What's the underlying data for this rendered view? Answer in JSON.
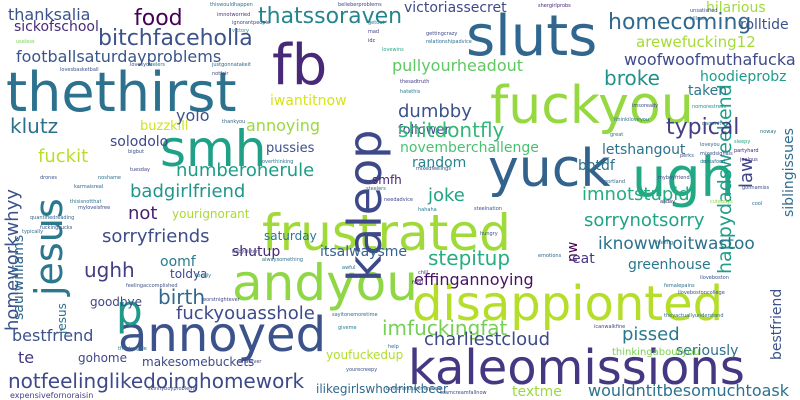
{
  "words": [
    {
      "text": "thethirst",
      "color": "#2c728e"
    },
    {
      "text": "annoyed",
      "color": "#3b528b"
    },
    {
      "text": "kaleomissions",
      "color": "#453781"
    },
    {
      "text": "frustrated",
      "color": "#a0da39"
    },
    {
      "text": "disappionted",
      "color": "#b5de2b"
    },
    {
      "text": "andyou",
      "color": "#8fd744"
    },
    {
      "text": "fuckyou",
      "color": "#95d840"
    },
    {
      "text": "sluts",
      "color": "#31668e"
    },
    {
      "text": "ugh",
      "color": "#22a884"
    },
    {
      "text": "smh",
      "color": "#1fa187"
    },
    {
      "text": "yuck",
      "color": "#33638d"
    },
    {
      "text": "fb",
      "color": "#482878"
    },
    {
      "text": "kaleop",
      "color": "#3e4989"
    },
    {
      "text": "jesus",
      "color": "#2a788e"
    },
    {
      "text": "bitchfaceholla",
      "color": "#3b528b"
    },
    {
      "text": "thatssoraven",
      "color": "#25858e"
    },
    {
      "text": "food",
      "color": "#440154"
    },
    {
      "text": "homecoming",
      "color": "#31688e"
    },
    {
      "text": "footballsaturdayproblems",
      "color": "#39568c"
    },
    {
      "text": "pullyourheadout",
      "color": "#5ec962"
    },
    {
      "text": "woofwoofmuthafucka",
      "color": "#3e4a89"
    },
    {
      "text": "arewefucking12",
      "color": "#a5db36"
    },
    {
      "text": "broke",
      "color": "#21918c"
    },
    {
      "text": "happydadsweekend",
      "color": "#1f9e89"
    },
    {
      "text": "hoodieprobz",
      "color": "#1e9b8a"
    },
    {
      "text": "law",
      "color": "#404688"
    },
    {
      "text": "siblingissues",
      "color": "#2f6c8e"
    },
    {
      "text": "taken",
      "color": "#2a778e"
    },
    {
      "text": "typical",
      "color": "#433e85"
    },
    {
      "text": "klutz",
      "color": "#2d708e"
    },
    {
      "text": "buzzkill",
      "color": "#d2e21b"
    },
    {
      "text": "iwantitnow",
      "color": "#d8e219"
    },
    {
      "text": "dumbby",
      "color": "#3b528b"
    },
    {
      "text": "follower",
      "color": "#3f4788"
    },
    {
      "text": "shitdontfly",
      "color": "#35b779"
    },
    {
      "text": "fuckit",
      "color": "#b8de29"
    },
    {
      "text": "yolo",
      "color": "#3a548c"
    },
    {
      "text": "annoying",
      "color": "#9bd93c"
    },
    {
      "text": "solodolo",
      "color": "#3e4989"
    },
    {
      "text": "numberonerule",
      "color": "#1e9c89"
    },
    {
      "text": "novemberchallenge",
      "color": "#48c16e"
    },
    {
      "text": "letshangout",
      "color": "#2c718e"
    },
    {
      "text": "random",
      "color": "#25848e"
    },
    {
      "text": "badgirlfriend",
      "color": "#1f968b"
    },
    {
      "text": "pussies",
      "color": "#3d4e8a"
    },
    {
      "text": "smfh",
      "color": "#482374"
    },
    {
      "text": "botdf",
      "color": "#2c718e"
    },
    {
      "text": "imnotstupid",
      "color": "#25ac82"
    },
    {
      "text": "not",
      "color": "#481f70"
    },
    {
      "text": "joke",
      "color": "#20a386"
    },
    {
      "text": "yourignorant",
      "color": "#a8db34"
    },
    {
      "text": "sorryfriends",
      "color": "#3d4d8a"
    },
    {
      "text": "saturday",
      "color": "#2a788e"
    },
    {
      "text": "iknowwhoitwastoo",
      "color": "#2d718e"
    },
    {
      "text": "sorrynotsorry",
      "color": "#20a386"
    },
    {
      "text": "homeworkwhyy",
      "color": "#3b528b"
    },
    {
      "text": "ughh",
      "color": "#433d84"
    },
    {
      "text": "shutup",
      "color": "#482677"
    },
    {
      "text": "stepitup",
      "color": "#26ad81"
    },
    {
      "text": "oomf",
      "color": "#29798e"
    },
    {
      "text": "itsalwaysme",
      "color": "#34618d"
    },
    {
      "text": "eat",
      "color": "#453781"
    },
    {
      "text": "greenhouse",
      "color": "#29798e"
    },
    {
      "text": "thanksalia",
      "color": "#3b528b"
    },
    {
      "text": "saulwilliams",
      "color": "#31668e"
    },
    {
      "text": "birth",
      "color": "#31678e"
    },
    {
      "text": "toldya",
      "color": "#3e4989"
    },
    {
      "text": "effingannoying",
      "color": "#471164"
    },
    {
      "text": "jesus",
      "color": "#2c718e"
    },
    {
      "text": "p",
      "color": "#1f9a8a"
    },
    {
      "text": "goodbye",
      "color": "#404688"
    },
    {
      "text": "fuckyouasshole",
      "color": "#3e4a89"
    },
    {
      "text": "imfuckingfat",
      "color": "#75d054"
    },
    {
      "text": "smallgirlprobs",
      "color": "#56c667"
    },
    {
      "text": "bestfriend",
      "color": "#3b528b"
    },
    {
      "text": "gohome",
      "color": "#3f4788"
    },
    {
      "text": "charliestcloud",
      "color": "#3e4989"
    },
    {
      "text": "pissed",
      "color": "#2a788e"
    },
    {
      "text": "seriously",
      "color": "#2c718e"
    },
    {
      "text": "te",
      "color": "#453781"
    },
    {
      "text": "makesomebuckets",
      "color": "#3e4989"
    },
    {
      "text": "youfuckedup",
      "color": "#b2dd2d"
    },
    {
      "text": "notfeelinglikedoinghomework",
      "color": "#3e4989"
    },
    {
      "text": "ilikegirlswhodrinkbeer",
      "color": "#31688e"
    },
    {
      "text": "textme",
      "color": "#9bd93c"
    },
    {
      "text": "wouldit",
      "color": "#2c718e"
    },
    {
      "text": "wouldntitbesomuchtoask",
      "color": "#2c718e"
    },
    {
      "text": "expensivefornoraisin",
      "color": "#433e85"
    },
    {
      "text": "victoriassecret",
      "color": "#3e4989"
    },
    {
      "text": "hilarious",
      "color": "#9fda3a"
    },
    {
      "text": "rolltide",
      "color": "#3b528b"
    },
    {
      "text": "sickofschool",
      "color": "#472c7a"
    },
    {
      "text": "thinkingaboutyou",
      "color": "#7ad151"
    },
    {
      "text": "nw",
      "color": "#440154"
    }
  ],
  "tiny_words": [
    {
      "text": "thiswouldhappen",
      "color": "#2c728e"
    },
    {
      "text": "imnotworried",
      "color": "#46327e"
    },
    {
      "text": "ignorantpeople",
      "color": "#3e4989"
    },
    {
      "text": "victory",
      "color": "#1f9e89"
    },
    {
      "text": "belieberproblems",
      "color": "#404688"
    },
    {
      "text": "shergirlprobs",
      "color": "#482677"
    },
    {
      "text": "unsatisfied",
      "color": "#3b528b"
    },
    {
      "text": "killme",
      "color": "#31688e"
    },
    {
      "text": "getout",
      "color": "#2a788e"
    },
    {
      "text": "mad",
      "color": "#433e85"
    },
    {
      "text": "idc",
      "color": "#482374"
    },
    {
      "text": "gettingcrazy",
      "color": "#3e4989"
    },
    {
      "text": "relationshipadvice",
      "color": "#2d708e"
    },
    {
      "text": "lovewins",
      "color": "#22a884"
    },
    {
      "text": "useless",
      "color": "#7ad151"
    },
    {
      "text": "lovesbasketball",
      "color": "#3b528b"
    },
    {
      "text": "lovesyou",
      "color": "#3f4788"
    },
    {
      "text": "feelers",
      "color": "#2c718e"
    },
    {
      "text": "notfair",
      "color": "#3e4989"
    },
    {
      "text": "justgonnatakeit",
      "color": "#31688e"
    },
    {
      "text": "hatethis",
      "color": "#2a788e"
    },
    {
      "text": "thesadtruth",
      "color": "#433e85"
    },
    {
      "text": "imsoready",
      "color": "#3e4989"
    },
    {
      "text": "nomorestress",
      "color": "#21918c"
    },
    {
      "text": "ithinkiloveyou",
      "color": "#2c718e"
    },
    {
      "text": "loveyou",
      "color": "#31688e"
    },
    {
      "text": "mixedsignals",
      "color": "#3b528b"
    },
    {
      "text": "sleepy",
      "color": "#22a884"
    },
    {
      "text": "partyhard",
      "color": "#482374"
    },
    {
      "text": "myboyfriend",
      "color": "#3e4989"
    },
    {
      "text": "jealous",
      "color": "#46327e"
    },
    {
      "text": "instafood",
      "color": "#2c718e"
    },
    {
      "text": "noway",
      "color": "#2a788e"
    },
    {
      "text": "drones",
      "color": "#3b528b"
    },
    {
      "text": "karmaisreal",
      "color": "#31688e"
    },
    {
      "text": "noshame",
      "color": "#2c718e"
    },
    {
      "text": "mixedfeelings",
      "color": "#404688"
    },
    {
      "text": "steelers",
      "color": "#2d708e"
    },
    {
      "text": "needadvice",
      "color": "#3e4989"
    },
    {
      "text": "steelnation",
      "color": "#3b528b"
    },
    {
      "text": "portland",
      "color": "#31688e"
    },
    {
      "text": "cute",
      "color": "#21918c"
    },
    {
      "text": "cuteboys",
      "color": "#8fd744"
    },
    {
      "text": "allday",
      "color": "#482878"
    },
    {
      "text": "awful",
      "color": "#2c718e"
    },
    {
      "text": "chill",
      "color": "#3e4989"
    },
    {
      "text": "emotions",
      "color": "#31688e"
    },
    {
      "text": "feeling",
      "color": "#2a788e"
    },
    {
      "text": "iloveboston",
      "color": "#3b528b"
    },
    {
      "text": "ilovebostoncollege",
      "color": "#3b528b"
    },
    {
      "text": "theyactuallyunderstand",
      "color": "#31688e"
    },
    {
      "text": "icanwalkfine",
      "color": "#404688"
    },
    {
      "text": "femalepains",
      "color": "#2c718e"
    },
    {
      "text": "fvou",
      "color": "#482374"
    },
    {
      "text": "fuckingsucks",
      "color": "#3b528b"
    },
    {
      "text": "quantifiedreading",
      "color": "#31688e"
    },
    {
      "text": "thestruggle",
      "color": "#2a788e"
    },
    {
      "text": "worstnightever",
      "color": "#404688"
    },
    {
      "text": "babysister",
      "color": "#3e4989"
    },
    {
      "text": "alwaysomething",
      "color": "#2c718e"
    },
    {
      "text": "feelingaccomplished",
      "color": "#3b528b"
    },
    {
      "text": "sayitonemoretime",
      "color": "#31688e"
    },
    {
      "text": "giveme",
      "color": "#2a788e"
    },
    {
      "text": "yourecreepy",
      "color": "#3b528b"
    },
    {
      "text": "skinnyboyproblems",
      "color": "#404688"
    },
    {
      "text": "bostonmusiceveryone",
      "color": "#2c718e"
    },
    {
      "text": "teamcreamfallnow",
      "color": "#3e4989"
    },
    {
      "text": "help",
      "color": "#31688e"
    },
    {
      "text": "hahaha",
      "color": "#2a788e"
    },
    {
      "text": "hungry",
      "color": "#3b528b"
    },
    {
      "text": "overthinking",
      "color": "#2c718e"
    },
    {
      "text": "bigbut",
      "color": "#3b528b"
    },
    {
      "text": "thankyou",
      "color": "#31688e"
    },
    {
      "text": "tuesday",
      "color": "#404688"
    },
    {
      "text": "thisisnotthat",
      "color": "#2c718e"
    },
    {
      "text": "myloveisfree",
      "color": "#3e4989"
    },
    {
      "text": "dammit",
      "color": "#31688e"
    },
    {
      "text": "great",
      "color": "#2a788e"
    },
    {
      "text": "perks",
      "color": "#3b528b"
    },
    {
      "text": "gonnamiss",
      "color": "#3e4989"
    },
    {
      "text": "cool",
      "color": "#2c718e"
    },
    {
      "text": "typically",
      "color": "#31688e"
    },
    {
      "text": "lonely",
      "color": "#2a788e"
    },
    {
      "text": "whatever",
      "color": "#404688"
    }
  ]
}
